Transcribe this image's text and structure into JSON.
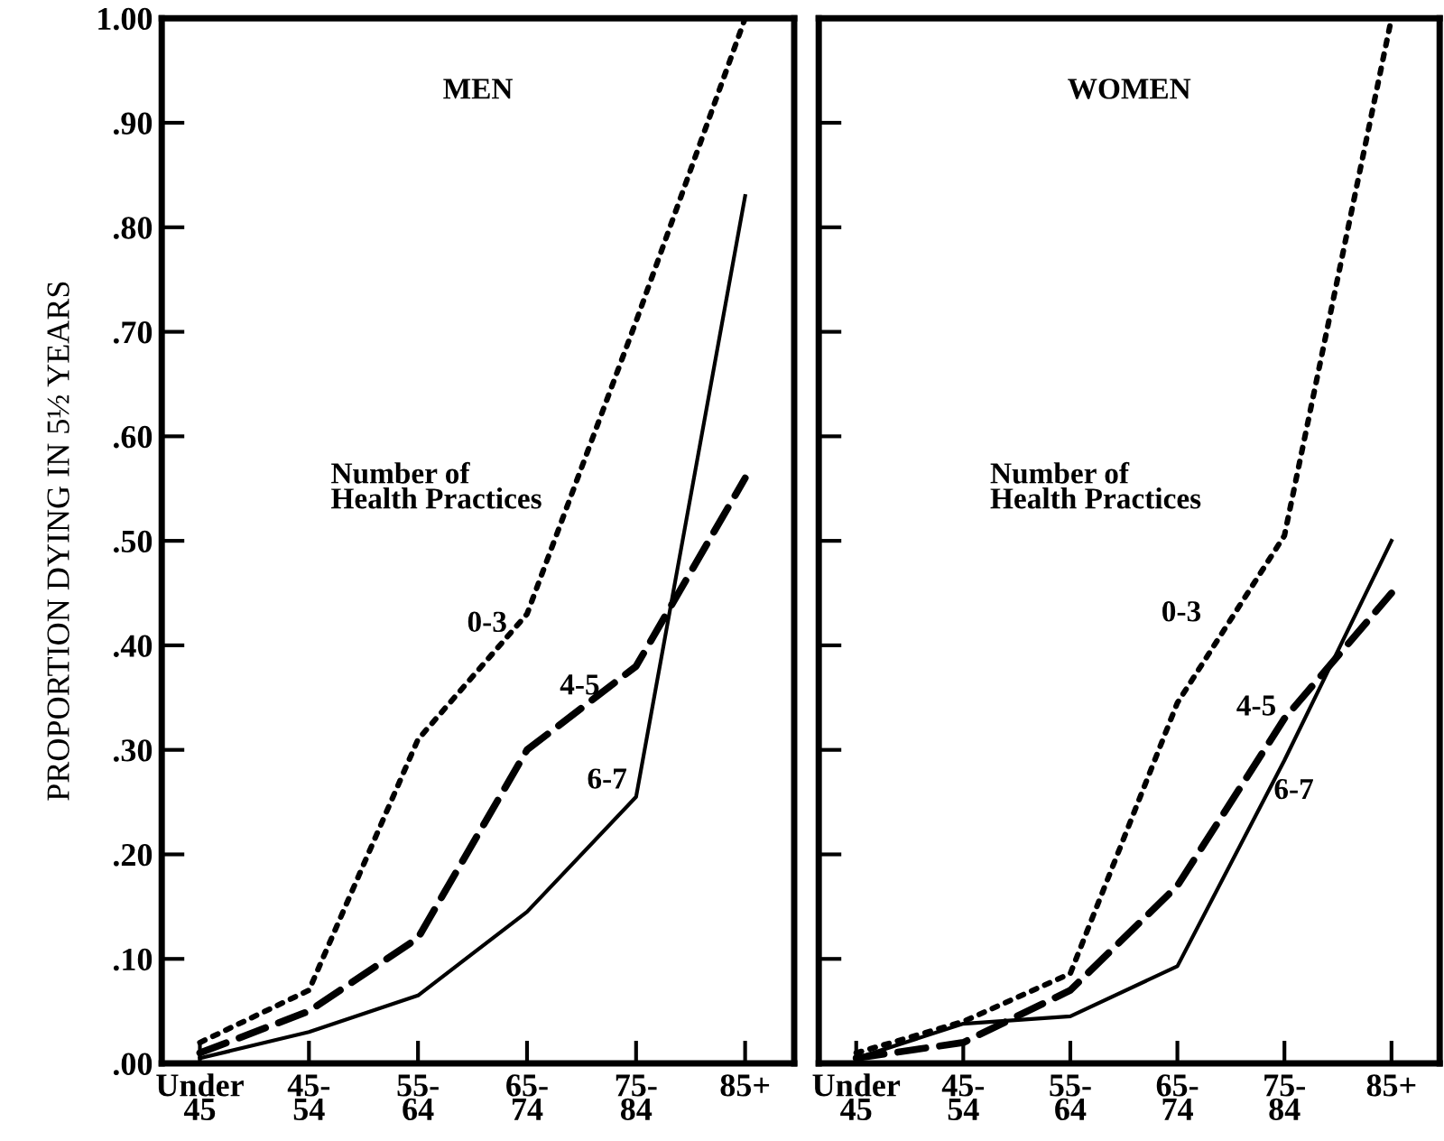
{
  "chart_data": [
    {
      "type": "line",
      "title": "MEN",
      "ylabel": "PROPORTION DYING IN 5½ YEARS",
      "categories": [
        "Under\n45",
        "45-\n54",
        "55-\n64",
        "65-\n74",
        "75-\n84",
        "85+"
      ],
      "series": [
        {
          "name": "0-3",
          "color": "#000000",
          "line_style": "dotted",
          "values": [
            0.02,
            0.07,
            0.31,
            0.43,
            0.71,
            1.0
          ]
        },
        {
          "name": "4-5",
          "color": "#000000",
          "line_style": "dashed",
          "values": [
            0.01,
            0.05,
            0.12,
            0.3,
            0.38,
            0.56
          ]
        },
        {
          "name": "6-7",
          "color": "#000000",
          "line_style": "solid",
          "values": [
            0.005,
            0.03,
            0.065,
            0.145,
            0.255,
            0.83
          ]
        }
      ],
      "annotations": [
        "Number of\nHealth Practices"
      ],
      "ylim": [
        0,
        1.0
      ],
      "yticks": [
        {
          "value": 0,
          "label": ".00"
        },
        {
          "value": 0.1,
          "label": ".10"
        },
        {
          "value": 0.2,
          "label": ".20"
        },
        {
          "value": 0.3,
          "label": ".30"
        },
        {
          "value": 0.4,
          "label": ".40"
        },
        {
          "value": 0.5,
          "label": ".50"
        },
        {
          "value": 0.6,
          "label": ".60"
        },
        {
          "value": 0.7,
          "label": ".70"
        },
        {
          "value": 0.8,
          "label": ".80"
        },
        {
          "value": 0.9,
          "label": ".90"
        },
        {
          "value": 1.0,
          "label": "1.00"
        }
      ],
      "grid": false,
      "legend": false
    },
    {
      "type": "line",
      "title": "WOMEN",
      "categories": [
        "Under\n45",
        "45-\n54",
        "55-\n64",
        "65-\n74",
        "75-\n84",
        "85+"
      ],
      "series": [
        {
          "name": "0-3",
          "color": "#000000",
          "line_style": "dotted",
          "values": [
            0.01,
            0.04,
            0.086,
            0.345,
            0.505,
            1.0
          ]
        },
        {
          "name": "4-5",
          "color": "#000000",
          "line_style": "dashed",
          "values": [
            0.005,
            0.02,
            0.07,
            0.17,
            0.33,
            0.45
          ]
        },
        {
          "name": "6-7",
          "color": "#000000",
          "line_style": "solid",
          "values": [
            0.005,
            0.038,
            0.045,
            0.093,
            0.29,
            0.5
          ]
        }
      ],
      "annotations": [
        "Number of\nHealth Practices"
      ],
      "ylim": [
        0,
        1.0
      ],
      "yticks": [
        {
          "value": 0,
          "label": null
        },
        {
          "value": 0.1,
          "label": null
        },
        {
          "value": 0.2,
          "label": null
        },
        {
          "value": 0.3,
          "label": null
        },
        {
          "value": 0.4,
          "label": null
        },
        {
          "value": 0.5,
          "label": null
        },
        {
          "value": 0.6,
          "label": null
        },
        {
          "value": 0.7,
          "label": null
        },
        {
          "value": 0.8,
          "label": null
        },
        {
          "value": 0.9,
          "label": null
        },
        {
          "value": 1.0,
          "label": null
        }
      ],
      "tick_labels": "x",
      "grid": false,
      "legend": false
    }
  ]
}
